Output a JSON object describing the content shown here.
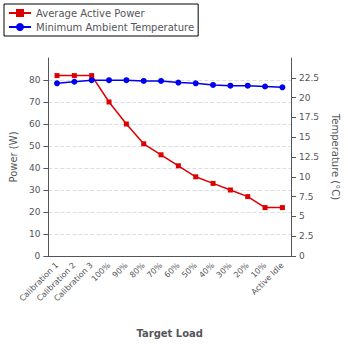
{
  "chart_data": {
    "type": "line",
    "categories": [
      "Calibration 1",
      "Calibration 2",
      "Calibration 3",
      "100%",
      "90%",
      "80%",
      "70%",
      "60%",
      "50%",
      "40%",
      "30%",
      "20%",
      "10%",
      "Active Idle"
    ],
    "series": [
      {
        "name": "Average Active Power",
        "color": "#dd0000",
        "marker": "square",
        "axis": "y",
        "values": [
          82,
          82,
          82,
          70,
          60,
          51,
          46,
          41,
          36,
          33,
          30,
          27,
          22,
          22
        ]
      },
      {
        "name": "Minimum Ambient Temperature",
        "color": "#0000ee",
        "marker": "circle",
        "axis": "y2",
        "values": [
          21.8,
          22.0,
          22.2,
          22.2,
          22.2,
          22.1,
          22.1,
          21.9,
          21.8,
          21.6,
          21.5,
          21.5,
          21.4,
          21.3
        ]
      }
    ],
    "xlabel": "Target Load",
    "ylabel": "Power (W)",
    "y2label": "Temperature (°C)",
    "ylim": [
      0,
      90
    ],
    "yticks": [
      0,
      10,
      20,
      30,
      40,
      50,
      60,
      70,
      80
    ],
    "y2lim": [
      0.0,
      25.0
    ],
    "y2ticks": [
      0.0,
      2.5,
      5.0,
      7.5,
      10.0,
      12.5,
      15.0,
      17.5,
      20.0,
      22.5
    ],
    "grid": true,
    "legend": "upper left"
  }
}
